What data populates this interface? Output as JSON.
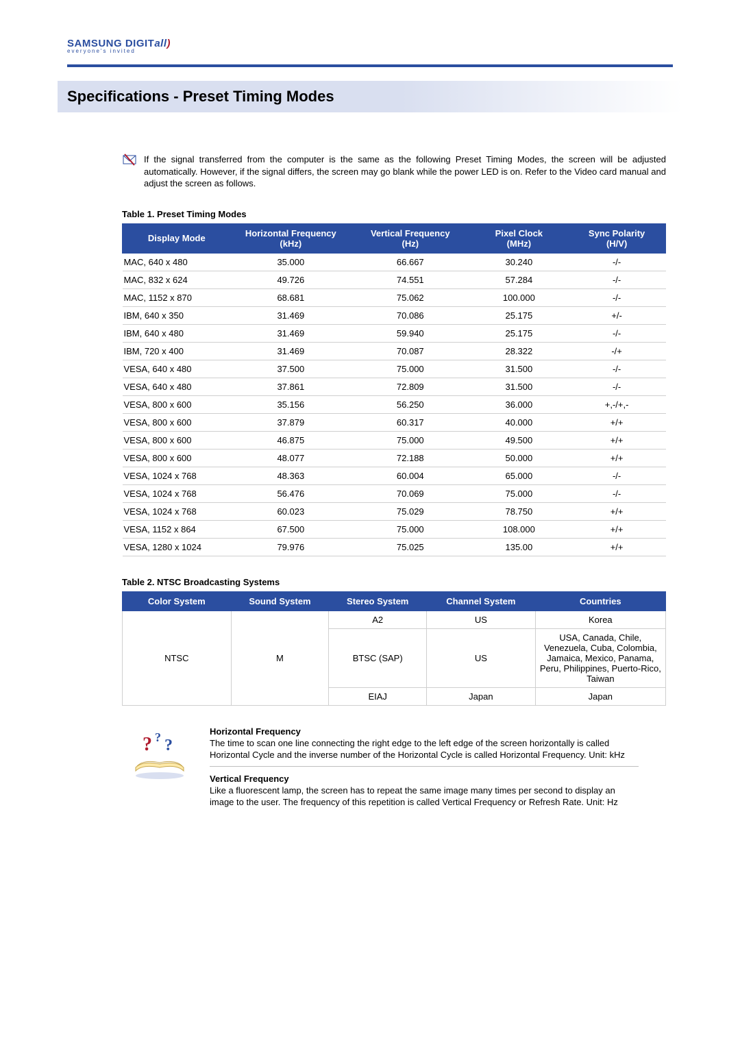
{
  "logo": {
    "main": "SAMSUNG DIGIT",
    "ital": "all",
    "sub": "everyone's invited"
  },
  "page_title": "Specifications - Preset Timing Modes",
  "intro_note": "If the signal transferred from the computer is the same as the following Preset Timing Modes, the screen will be adjusted automatically. However, if the signal differs, the screen may go blank while the power LED is on. Refer to the Video card manual and adjust the screen as follows.",
  "table1": {
    "caption": "Table 1. Preset Timing Modes",
    "headers": [
      "Display Mode",
      "Horizontal Frequency (kHz)",
      "Vertical Frequency (Hz)",
      "Pixel Clock (MHz)",
      "Sync Polarity (H/V)"
    ],
    "rows": [
      [
        "MAC, 640 x 480",
        "35.000",
        "66.667",
        "30.240",
        "-/-"
      ],
      [
        "MAC, 832 x 624",
        "49.726",
        "74.551",
        "57.284",
        "-/-"
      ],
      [
        "MAC, 1152 x 870",
        "68.681",
        "75.062",
        "100.000",
        "-/-"
      ],
      [
        "IBM, 640 x 350",
        "31.469",
        "70.086",
        "25.175",
        "+/-"
      ],
      [
        "IBM, 640 x 480",
        "31.469",
        "59.940",
        "25.175",
        "-/-"
      ],
      [
        "IBM, 720 x 400",
        "31.469",
        "70.087",
        "28.322",
        "-/+"
      ],
      [
        "VESA, 640 x 480",
        "37.500",
        "75.000",
        "31.500",
        "-/-"
      ],
      [
        "VESA, 640 x 480",
        "37.861",
        "72.809",
        "31.500",
        "-/-"
      ],
      [
        "VESA, 800 x 600",
        "35.156",
        "56.250",
        "36.000",
        "+,-/+,-"
      ],
      [
        "VESA, 800 x 600",
        "37.879",
        "60.317",
        "40.000",
        "+/+"
      ],
      [
        "VESA, 800 x 600",
        "46.875",
        "75.000",
        "49.500",
        "+/+"
      ],
      [
        "VESA, 800 x 600",
        "48.077",
        "72.188",
        "50.000",
        "+/+"
      ],
      [
        "VESA, 1024 x 768",
        "48.363",
        "60.004",
        "65.000",
        "-/-"
      ],
      [
        "VESA, 1024 x 768",
        "56.476",
        "70.069",
        "75.000",
        "-/-"
      ],
      [
        "VESA, 1024 x 768",
        "60.023",
        "75.029",
        "78.750",
        "+/+"
      ],
      [
        "VESA, 1152 x 864",
        "67.500",
        "75.000",
        "108.000",
        "+/+"
      ],
      [
        "VESA, 1280 x 1024",
        "79.976",
        "75.025",
        "135.00",
        "+/+"
      ]
    ]
  },
  "table2": {
    "caption": "Table 2. NTSC Broadcasting Systems",
    "headers": [
      "Color System",
      "Sound System",
      "Stereo System",
      "Channel System",
      "Countries"
    ],
    "rows": [
      {
        "color": "NTSC",
        "sound": "M",
        "stereo": "A2",
        "channel": "US",
        "countries": "Korea",
        "color_rowspan": 3,
        "sound_rowspan": 3
      },
      {
        "stereo": "BTSC (SAP)",
        "channel": "US",
        "countries": "USA, Canada, Chile, Venezuela, Cuba, Colombia, Jamaica, Mexico, Panama, Peru, Philippines, Puerto-Rico, Taiwan"
      },
      {
        "stereo": "EIAJ",
        "channel": "Japan",
        "countries": "Japan"
      }
    ]
  },
  "definitions": [
    {
      "title": "Horizontal Frequency",
      "body": "The time to scan one line connecting the right edge to the left edge of the screen horizontally is called Horizontal Cycle and the inverse number of the Horizontal Cycle is called Horizontal Frequency. Unit: kHz"
    },
    {
      "title": "Vertical Frequency",
      "body": "Like a fluorescent lamp, the screen has to repeat the same image many times per second to display an image to the user. The frequency of this repetition is called Vertical Frequency or Refresh Rate. Unit: Hz"
    }
  ],
  "colors": {
    "brand_blue": "#2b4ea0",
    "brand_red": "#b01c2e",
    "title_bg": "#d9dff0",
    "row_border": "#cfcfcf"
  }
}
